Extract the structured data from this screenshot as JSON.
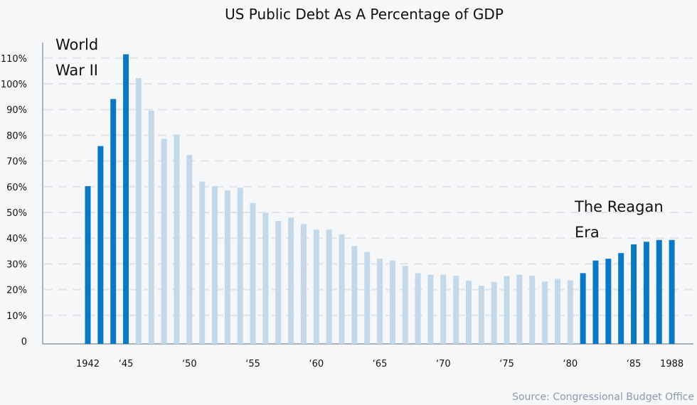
{
  "chart_data": {
    "type": "bar",
    "title": "US Public Debt As A Percentage of GDP",
    "xlabel": "",
    "ylabel": "",
    "ylim": [
      0,
      112
    ],
    "y_ticks": [
      {
        "value": 0,
        "label": "0"
      },
      {
        "value": 10,
        "label": "10%"
      },
      {
        "value": 20,
        "label": "20%"
      },
      {
        "value": 30,
        "label": "30%"
      },
      {
        "value": 40,
        "label": "40%"
      },
      {
        "value": 50,
        "label": "50%"
      },
      {
        "value": 60,
        "label": "60%"
      },
      {
        "value": 70,
        "label": "70%"
      },
      {
        "value": 80,
        "label": "80%"
      },
      {
        "value": 90,
        "label": "90%"
      },
      {
        "value": 100,
        "label": "100%"
      },
      {
        "value": 110,
        "label": "110%"
      }
    ],
    "x_ticks": [
      {
        "year": 1942,
        "label": "1942"
      },
      {
        "year": 1945,
        "label": "‘45"
      },
      {
        "year": 1950,
        "label": "‘50"
      },
      {
        "year": 1955,
        "label": "‘55"
      },
      {
        "year": 1960,
        "label": "‘60"
      },
      {
        "year": 1965,
        "label": "‘65"
      },
      {
        "year": 1970,
        "label": "‘70"
      },
      {
        "year": 1975,
        "label": "‘75"
      },
      {
        "year": 1980,
        "label": "‘80"
      },
      {
        "year": 1985,
        "label": "‘85"
      },
      {
        "year": 1988,
        "label": "1988"
      }
    ],
    "categories": [
      1942,
      1943,
      1944,
      1945,
      1946,
      1947,
      1948,
      1949,
      1950,
      1951,
      1952,
      1953,
      1954,
      1955,
      1956,
      1957,
      1958,
      1959,
      1960,
      1961,
      1962,
      1963,
      1964,
      1965,
      1966,
      1967,
      1968,
      1969,
      1970,
      1971,
      1972,
      1973,
      1974,
      1975,
      1976,
      1977,
      1978,
      1979,
      1980,
      1981,
      1982,
      1983,
      1984,
      1985,
      1986,
      1987,
      1988
    ],
    "values": [
      60.2,
      75.8,
      94.1,
      111.5,
      102.2,
      89.6,
      78.6,
      80.2,
      72.4,
      62.0,
      60.2,
      58.6,
      59.6,
      53.7,
      49.9,
      46.7,
      48.0,
      45.5,
      43.3,
      43.3,
      41.5,
      37.0,
      34.6,
      32.0,
      31.3,
      29.2,
      26.4,
      25.8,
      25.8,
      25.4,
      23.5,
      21.5,
      23.0,
      25.3,
      25.8,
      25.4,
      23.1,
      24.2,
      23.6,
      26.4,
      31.3,
      32.0,
      34.2,
      37.6,
      38.6,
      39.3,
      39.3
    ],
    "highlight_ranges": [
      {
        "label_lines": [
          "World",
          "War II"
        ],
        "from": 1942,
        "to": 1945
      },
      {
        "label_lines": [
          "The Reagan",
          "Era"
        ],
        "from": 1981,
        "to": 1988
      }
    ],
    "colors": {
      "highlight": "#0a78c9",
      "normal": "#c3d9ea"
    },
    "grid": true,
    "source": "Source: Congressional Budget Office"
  }
}
